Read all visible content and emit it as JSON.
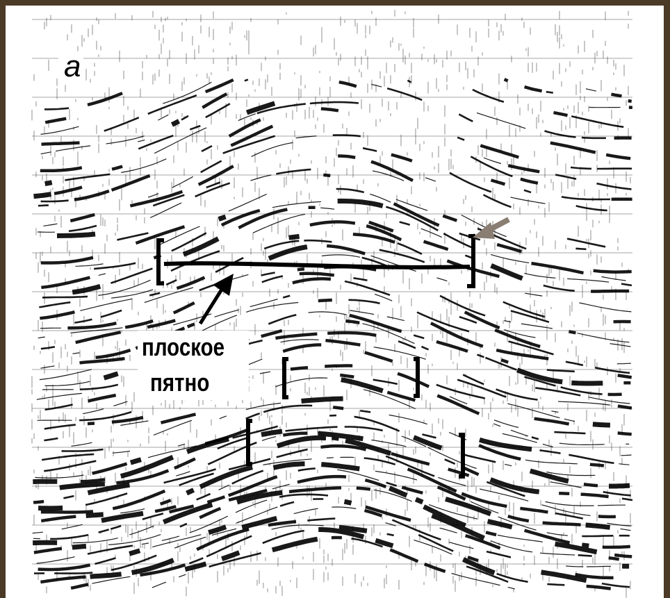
{
  "panel_label": "а",
  "annotation": {
    "lines": [
      "плоское",
      "пятно"
    ]
  }
}
